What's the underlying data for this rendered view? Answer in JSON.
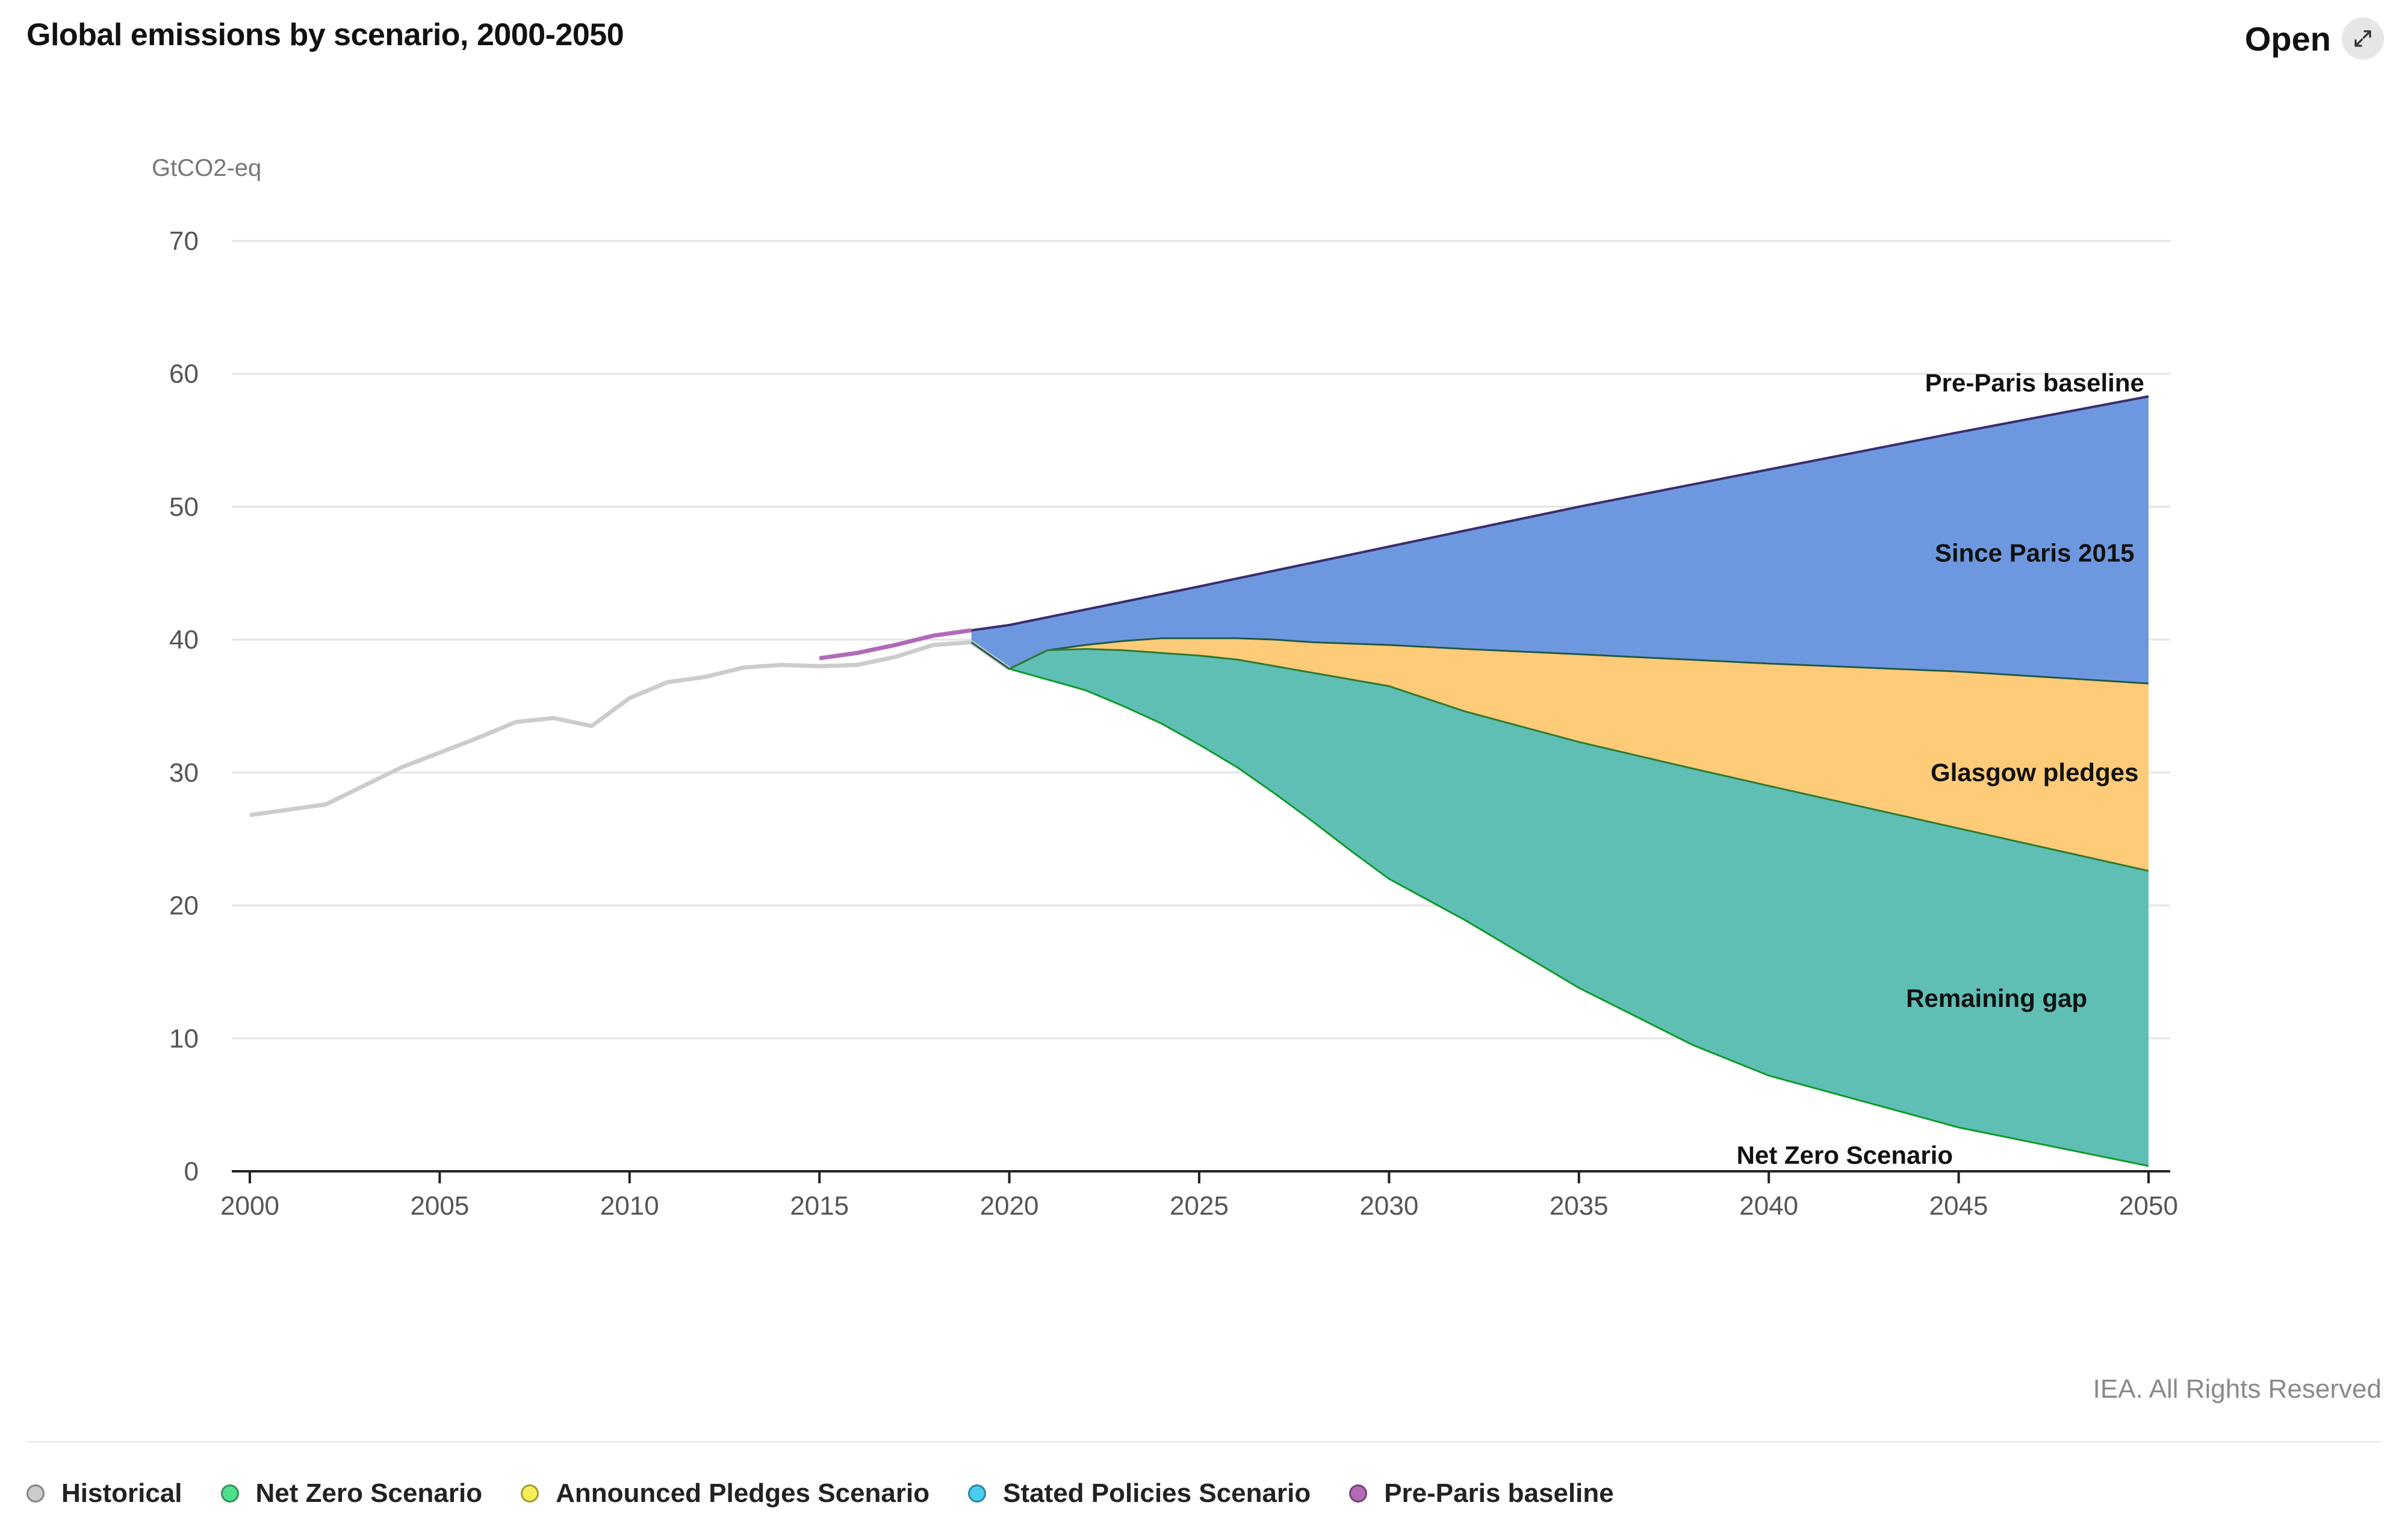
{
  "header": {
    "title": "Global emissions by scenario, 2000-2050",
    "open_label": "Open",
    "open_icon": "expand-icon"
  },
  "credit": "IEA. All Rights Reserved",
  "chart_data": {
    "type": "area",
    "title": "Global emissions by scenario, 2000-2050",
    "ylabel": "GtCO2-eq",
    "xlabel": "",
    "xlim": [
      2000,
      2050
    ],
    "ylim": [
      0,
      70
    ],
    "x_ticks": [
      "2000",
      "2005",
      "2010",
      "2015",
      "2020",
      "2025",
      "2030",
      "2035",
      "2040",
      "2045",
      "2050"
    ],
    "y_ticks": [
      "0",
      "10",
      "20",
      "30",
      "40",
      "50",
      "60",
      "70"
    ],
    "grid": "horizontal",
    "series": [
      {
        "name": "Historical",
        "kind": "line",
        "color": "#cccccc",
        "x": [
          2000,
          2001,
          2002,
          2003,
          2004,
          2005,
          2006,
          2007,
          2008,
          2009,
          2010,
          2011,
          2012,
          2013,
          2014,
          2015,
          2016,
          2017,
          2018,
          2019,
          2020
        ],
        "values": [
          26.8,
          27.2,
          27.6,
          29.0,
          30.4,
          31.5,
          32.6,
          33.8,
          34.1,
          33.5,
          35.6,
          36.8,
          37.2,
          37.9,
          38.1,
          38.0,
          38.1,
          38.7,
          39.6,
          39.8,
          37.8
        ]
      },
      {
        "name": "Pre-Paris baseline",
        "kind": "line",
        "color": "#b169b8",
        "x": [
          2015,
          2016,
          2017,
          2018,
          2019,
          2020,
          2025,
          2030,
          2035,
          2040,
          2045,
          2050
        ],
        "values": [
          38.6,
          39.0,
          39.6,
          40.3,
          40.7,
          41.1,
          44.0,
          47.0,
          50.0,
          52.8,
          55.6,
          58.3
        ]
      },
      {
        "name": "Stated Policies Scenario",
        "kind": "line",
        "color": "#35c3e8",
        "x": [
          2019,
          2020,
          2021,
          2022,
          2023,
          2024,
          2025,
          2026,
          2027,
          2028,
          2029,
          2030,
          2032,
          2035,
          2040,
          2045,
          2050
        ],
        "values": [
          39.8,
          37.8,
          39.2,
          39.6,
          39.9,
          40.1,
          40.1,
          40.1,
          40.0,
          39.8,
          39.7,
          39.6,
          39.3,
          38.9,
          38.2,
          37.6,
          36.7
        ]
      },
      {
        "name": "Announced Pledges Scenario",
        "kind": "line",
        "color": "#f6e84a",
        "x": [
          2020,
          2021,
          2022,
          2023,
          2024,
          2025,
          2026,
          2027,
          2028,
          2029,
          2030,
          2032,
          2035,
          2038,
          2040,
          2045,
          2050
        ],
        "values": [
          37.8,
          39.2,
          39.3,
          39.2,
          39.0,
          38.8,
          38.5,
          38.0,
          37.5,
          37.0,
          36.5,
          34.6,
          32.3,
          30.3,
          29.0,
          25.8,
          22.6
        ]
      },
      {
        "name": "Net Zero Scenario",
        "kind": "line",
        "color": "#2ec86e",
        "x": [
          2020,
          2021,
          2022,
          2023,
          2024,
          2025,
          2026,
          2027,
          2028,
          2029,
          2030,
          2032,
          2035,
          2038,
          2040,
          2045,
          2050
        ],
        "values": [
          37.8,
          37.0,
          36.2,
          35.0,
          33.7,
          32.1,
          30.4,
          28.4,
          26.3,
          24.1,
          22.0,
          18.9,
          13.8,
          9.5,
          7.2,
          3.3,
          0.4
        ]
      }
    ],
    "areas": [
      {
        "label": "Since Paris 2015",
        "between": [
          "Pre-Paris baseline",
          "Stated Policies Scenario"
        ],
        "color": "#6d98df",
        "label_x": 2047.0,
        "label_y": 46.5
      },
      {
        "label": "Glasgow pledges",
        "between": [
          "Stated Policies Scenario",
          "Announced Pledges Scenario"
        ],
        "color": "#fecb79",
        "label_x": 2047.0,
        "label_y": 30.0
      },
      {
        "label": "Remaining gap",
        "between": [
          "Announced Pledges Scenario",
          "Net Zero Scenario"
        ],
        "color": "#5fbfb5",
        "label_x": 2046.0,
        "label_y": 13.0
      }
    ],
    "line_labels": [
      {
        "label": "Pre-Paris baseline",
        "label_x": 2047.0,
        "label_y": 59.3
      },
      {
        "label": "Net Zero Scenario",
        "label_x": 2042.0,
        "label_y": 1.2
      }
    ],
    "legend": {
      "position": "bottom",
      "items": [
        {
          "name": "Historical",
          "color": "#cccccc",
          "icon": "legend-dot"
        },
        {
          "name": "Net Zero Scenario",
          "color": "#4fe08a",
          "icon": "legend-dot"
        },
        {
          "name": "Announced Pledges Scenario",
          "color": "#f7ee55",
          "icon": "legend-dot"
        },
        {
          "name": "Stated Policies Scenario",
          "color": "#47cdf0",
          "icon": "legend-dot"
        },
        {
          "name": "Pre-Paris baseline",
          "color": "#b169b8",
          "icon": "legend-dot"
        }
      ]
    }
  }
}
